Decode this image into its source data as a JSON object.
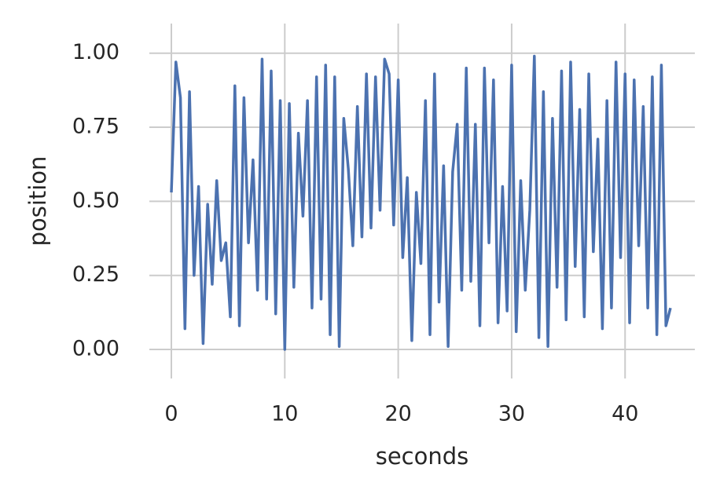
{
  "chart_data": {
    "type": "line",
    "xlabel": "seconds",
    "ylabel": "position",
    "x": [
      0,
      0.4,
      0.8,
      1.2,
      1.6,
      2,
      2.4,
      2.8,
      3.2,
      3.6,
      4,
      4.4,
      4.8,
      5.2,
      5.6,
      6,
      6.4,
      6.8,
      7.2,
      7.6,
      8,
      8.4,
      8.8,
      9.2,
      9.6,
      10,
      10.4,
      10.8,
      11.2,
      11.6,
      12,
      12.4,
      12.8,
      13.2,
      13.6,
      14,
      14.4,
      14.8,
      15.2,
      15.6,
      16,
      16.4,
      16.8,
      17.2,
      17.6,
      18,
      18.4,
      18.8,
      19.2,
      19.6,
      20,
      20.4,
      20.8,
      21.2,
      21.6,
      22,
      22.4,
      22.8,
      23.2,
      23.6,
      24,
      24.4,
      24.8,
      25.2,
      25.6,
      26,
      26.4,
      26.8,
      27.2,
      27.6,
      28,
      28.4,
      28.8,
      29.2,
      29.6,
      30,
      30.4,
      30.8,
      31.2,
      31.6,
      32,
      32.4,
      32.8,
      33.2,
      33.6,
      34,
      34.4,
      34.8,
      35.2,
      35.6,
      36,
      36.4,
      36.8,
      37.2,
      37.6,
      38,
      38.4,
      38.8,
      39.2,
      39.6,
      40,
      40.4,
      40.8,
      41.2,
      41.6,
      42,
      42.4,
      42.8,
      43.2,
      43.6,
      44
    ],
    "series": [
      {
        "name": "position",
        "color": "#4c72b0",
        "values": [
          0.53,
          0.97,
          0.85,
          0.07,
          0.87,
          0.25,
          0.55,
          0.02,
          0.49,
          0.22,
          0.57,
          0.3,
          0.36,
          0.11,
          0.89,
          0.08,
          0.85,
          0.36,
          0.64,
          0.2,
          0.98,
          0.17,
          0.94,
          0.12,
          0.84,
          0.0,
          0.83,
          0.21,
          0.73,
          0.45,
          0.84,
          0.14,
          0.92,
          0.17,
          0.96,
          0.05,
          0.92,
          0.01,
          0.78,
          0.61,
          0.35,
          0.82,
          0.38,
          0.93,
          0.41,
          0.92,
          0.47,
          0.98,
          0.93,
          0.42,
          0.91,
          0.31,
          0.58,
          0.03,
          0.53,
          0.29,
          0.84,
          0.05,
          0.93,
          0.16,
          0.62,
          0.01,
          0.6,
          0.76,
          0.2,
          0.95,
          0.23,
          0.76,
          0.08,
          0.95,
          0.36,
          0.91,
          0.09,
          0.55,
          0.13,
          0.96,
          0.06,
          0.57,
          0.2,
          0.47,
          0.99,
          0.04,
          0.87,
          0.01,
          0.78,
          0.21,
          0.94,
          0.1,
          0.97,
          0.28,
          0.81,
          0.11,
          0.93,
          0.33,
          0.71,
          0.07,
          0.84,
          0.14,
          0.97,
          0.31,
          0.93,
          0.09,
          0.91,
          0.35,
          0.82,
          0.14,
          0.92,
          0.05,
          0.96,
          0.08,
          0.14
        ]
      }
    ],
    "xlim": [
      -1.94,
      46.15
    ],
    "xticks": [
      0,
      10,
      20,
      30,
      40
    ],
    "ylim": [
      -0.098,
      1.1
    ],
    "yticks": [
      {
        "value": 0,
        "label": "0.00"
      },
      {
        "value": 0.25,
        "label": "0.25"
      },
      {
        "value": 0.5,
        "label": "0.50"
      },
      {
        "value": 0.75,
        "label": "0.75"
      },
      {
        "value": 1,
        "label": "1.00"
      }
    ],
    "grid": true
  }
}
